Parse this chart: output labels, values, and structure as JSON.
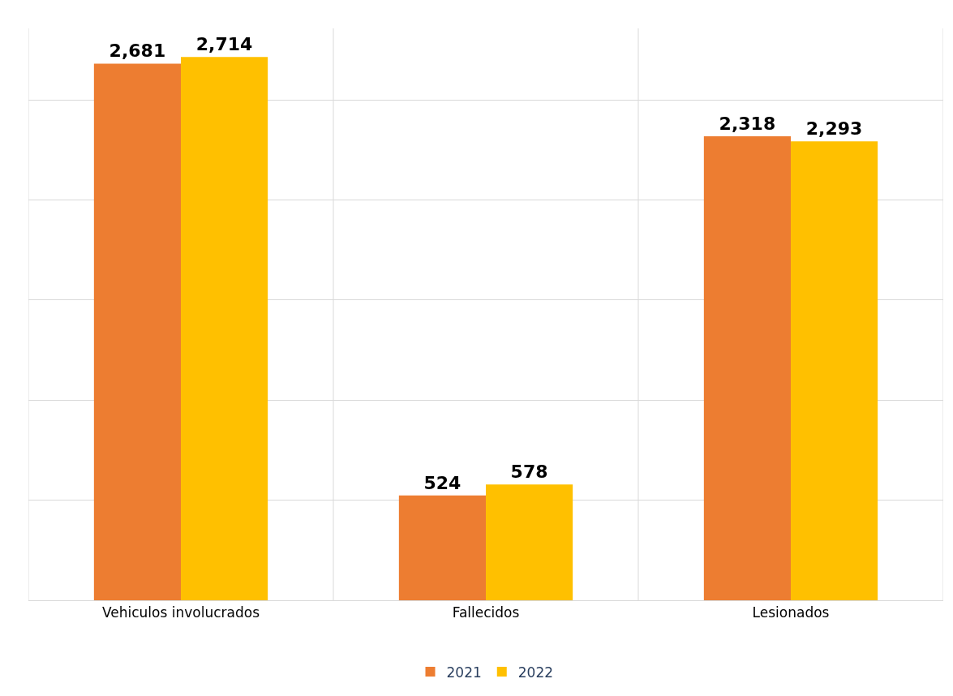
{
  "chart_data": {
    "type": "bar",
    "categories": [
      "Vehiculos involucrados",
      "Fallecidos",
      "Lesionados"
    ],
    "series": [
      {
        "name": "2021",
        "color": "#ed7d31",
        "values": [
          2681,
          524,
          2318
        ],
        "value_labels": [
          "2,681",
          "524",
          "2,318"
        ]
      },
      {
        "name": "2022",
        "color": "#ffc000",
        "values": [
          2714,
          578,
          2293
        ],
        "value_labels": [
          "2,714",
          "578",
          "2,293"
        ]
      }
    ],
    "tick_labels": "x",
    "grid": true,
    "legend": "bottom"
  }
}
